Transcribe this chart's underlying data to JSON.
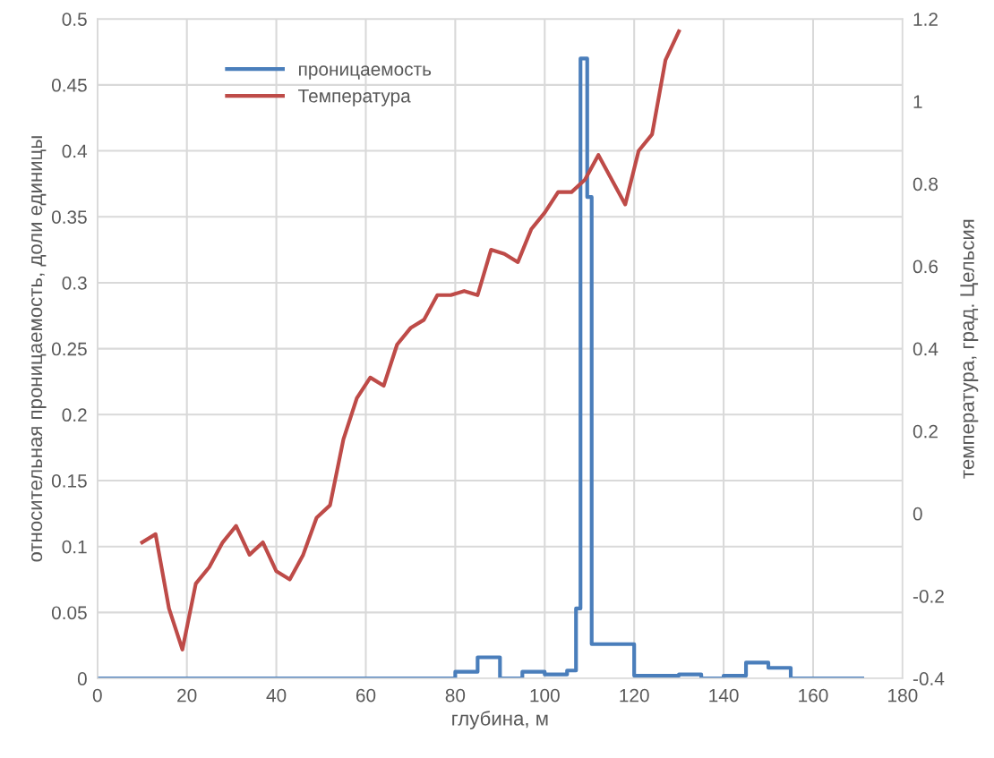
{
  "chart_data": {
    "type": "line",
    "xlabel": "глубина, м",
    "ylabel": "относительная проницаемость, доли единицы",
    "y2label": "температура, град. Цельсия",
    "xlim": [
      0,
      180
    ],
    "xticks": [
      0,
      20,
      40,
      60,
      80,
      100,
      120,
      140,
      160,
      180
    ],
    "ylim": [
      0,
      0.5
    ],
    "yticks": [
      0,
      0.05,
      0.1,
      0.15,
      0.2,
      0.25,
      0.3,
      0.35,
      0.4,
      0.45,
      0.5
    ],
    "y2lim": [
      -0.4,
      1.2
    ],
    "y2ticks": [
      -0.4,
      -0.2,
      0,
      0.2,
      0.4,
      0.6,
      0.8,
      1,
      1.2
    ],
    "grid": true,
    "legend": "top left",
    "series": [
      {
        "name": "проницаемость",
        "type": "step",
        "color": "#4a7ebb",
        "x": [
          0,
          80,
          85,
          90,
          95,
          100,
          105,
          107,
          108,
          109.5,
          110.5,
          120,
          130,
          135,
          140,
          145,
          150,
          155,
          171
        ],
        "values": [
          0,
          0.005,
          0.016,
          0,
          0.005,
          0.003,
          0.006,
          0.053,
          0.47,
          0.365,
          0.026,
          0.002,
          0.003,
          0,
          0.002,
          0.012,
          0.008,
          0,
          0
        ]
      },
      {
        "name": "Температура",
        "axis": "y2",
        "color": "#be4b48",
        "x": [
          10,
          13,
          16,
          19,
          22,
          25,
          28,
          31,
          34,
          37,
          40,
          43,
          46,
          49,
          52,
          55,
          58,
          61,
          64,
          67,
          70,
          73,
          76,
          79,
          82,
          85,
          88,
          91,
          94,
          97,
          100,
          103,
          106,
          109,
          112,
          118,
          121,
          124,
          127,
          130
        ],
        "values": [
          -0.07,
          -0.05,
          -0.23,
          -0.33,
          -0.17,
          -0.13,
          -0.07,
          -0.03,
          -0.1,
          -0.07,
          -0.14,
          -0.16,
          -0.1,
          -0.01,
          0.02,
          0.18,
          0.28,
          0.33,
          0.31,
          0.41,
          0.45,
          0.47,
          0.53,
          0.53,
          0.54,
          0.53,
          0.64,
          0.63,
          0.61,
          0.69,
          0.73,
          0.78,
          0.78,
          0.81,
          0.87,
          0.75,
          0.88,
          0.92,
          1.1,
          1.17
        ]
      }
    ]
  }
}
